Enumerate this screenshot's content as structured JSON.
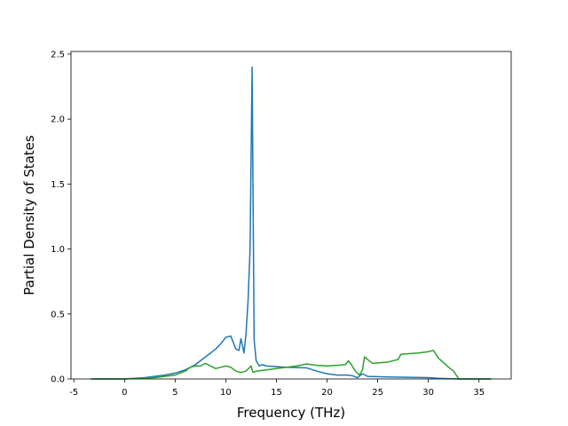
{
  "chart_data": {
    "type": "line",
    "x_label": "Frequency (THz)",
    "y_label": "Partial Density of States",
    "xlim": [
      -5.28,
      38.18
    ],
    "ylim": [
      0,
      2.52
    ],
    "xticks": [
      -5,
      0,
      5,
      10,
      15,
      20,
      25,
      30,
      35
    ],
    "yticks": [
      {
        "value": 0,
        "label": "0.0"
      },
      0.5,
      {
        "value": 1,
        "label": "1.0"
      },
      1.5,
      {
        "value": 2,
        "label": "2.0"
      },
      2.5
    ],
    "series": [
      {
        "color": "#1f77b4",
        "x": [
          -3.3,
          0,
          2,
          4,
          5,
          6,
          7,
          8,
          9,
          9.5,
          10,
          10.5,
          11,
          11.3,
          11.5,
          11.8,
          12,
          12.2,
          12.4,
          12.6,
          12.8,
          13,
          13.3,
          13.6,
          14,
          16,
          18,
          19,
          20,
          21,
          22,
          22.5,
          23,
          23.5,
          24,
          26,
          30,
          31,
          33,
          36.2
        ],
        "values": [
          0,
          0,
          0.01,
          0.03,
          0.045,
          0.07,
          0.11,
          0.17,
          0.23,
          0.27,
          0.32,
          0.33,
          0.23,
          0.22,
          0.31,
          0.2,
          0.35,
          0.6,
          1.0,
          2.4,
          0.3,
          0.14,
          0.1,
          0.11,
          0.1,
          0.09,
          0.085,
          0.06,
          0.04,
          0.03,
          0.03,
          0.025,
          0.01,
          0.04,
          0.02,
          0.015,
          0.01,
          0.005,
          0,
          0
        ]
      },
      {
        "color": "#2ca02c",
        "x": [
          -3.3,
          0,
          3,
          5,
          6,
          6.5,
          7,
          7.5,
          8,
          8.5,
          9,
          9.5,
          10,
          10.5,
          11,
          11.5,
          12,
          12.5,
          12.7,
          13,
          15,
          17,
          18,
          19,
          20,
          21,
          21.8,
          22.1,
          22.4,
          22.8,
          23.2,
          23.5,
          23.7,
          24,
          24.5,
          26,
          27,
          27.3,
          29,
          30,
          30.5,
          31,
          32,
          32.5,
          33,
          36.2
        ],
        "values": [
          0,
          0,
          0.01,
          0.03,
          0.06,
          0.09,
          0.1,
          0.1,
          0.12,
          0.1,
          0.08,
          0.09,
          0.1,
          0.09,
          0.06,
          0.05,
          0.06,
          0.1,
          0.05,
          0.06,
          0.08,
          0.1,
          0.115,
          0.105,
          0.1,
          0.105,
          0.11,
          0.14,
          0.11,
          0.06,
          0.03,
          0.07,
          0.17,
          0.15,
          0.12,
          0.13,
          0.15,
          0.19,
          0.2,
          0.21,
          0.22,
          0.16,
          0.09,
          0.06,
          0,
          0
        ]
      }
    ]
  }
}
